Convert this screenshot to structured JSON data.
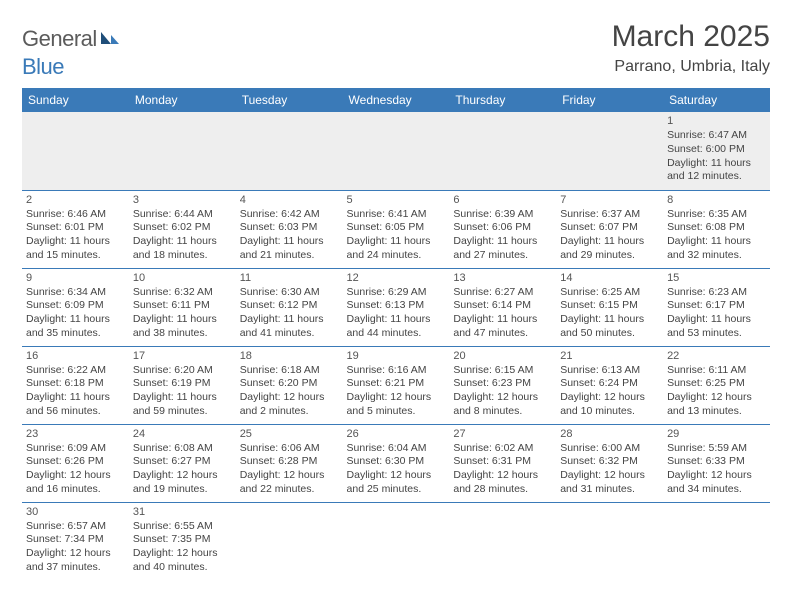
{
  "logo": {
    "word1": "General",
    "word2": "Blue"
  },
  "title": "March 2025",
  "location": "Parrano, Umbria, Italy",
  "colors": {
    "header_bg": "#3a7ab8",
    "header_fg": "#ffffff",
    "border": "#3a7ab8",
    "text": "#444444",
    "empty_bg": "#eeeeee"
  },
  "weekdays": [
    "Sunday",
    "Monday",
    "Tuesday",
    "Wednesday",
    "Thursday",
    "Friday",
    "Saturday"
  ],
  "weeks": [
    [
      null,
      null,
      null,
      null,
      null,
      null,
      {
        "n": "1",
        "sr": "Sunrise: 6:47 AM",
        "ss": "Sunset: 6:00 PM",
        "d1": "Daylight: 11 hours",
        "d2": "and 12 minutes."
      }
    ],
    [
      {
        "n": "2",
        "sr": "Sunrise: 6:46 AM",
        "ss": "Sunset: 6:01 PM",
        "d1": "Daylight: 11 hours",
        "d2": "and 15 minutes."
      },
      {
        "n": "3",
        "sr": "Sunrise: 6:44 AM",
        "ss": "Sunset: 6:02 PM",
        "d1": "Daylight: 11 hours",
        "d2": "and 18 minutes."
      },
      {
        "n": "4",
        "sr": "Sunrise: 6:42 AM",
        "ss": "Sunset: 6:03 PM",
        "d1": "Daylight: 11 hours",
        "d2": "and 21 minutes."
      },
      {
        "n": "5",
        "sr": "Sunrise: 6:41 AM",
        "ss": "Sunset: 6:05 PM",
        "d1": "Daylight: 11 hours",
        "d2": "and 24 minutes."
      },
      {
        "n": "6",
        "sr": "Sunrise: 6:39 AM",
        "ss": "Sunset: 6:06 PM",
        "d1": "Daylight: 11 hours",
        "d2": "and 27 minutes."
      },
      {
        "n": "7",
        "sr": "Sunrise: 6:37 AM",
        "ss": "Sunset: 6:07 PM",
        "d1": "Daylight: 11 hours",
        "d2": "and 29 minutes."
      },
      {
        "n": "8",
        "sr": "Sunrise: 6:35 AM",
        "ss": "Sunset: 6:08 PM",
        "d1": "Daylight: 11 hours",
        "d2": "and 32 minutes."
      }
    ],
    [
      {
        "n": "9",
        "sr": "Sunrise: 6:34 AM",
        "ss": "Sunset: 6:09 PM",
        "d1": "Daylight: 11 hours",
        "d2": "and 35 minutes."
      },
      {
        "n": "10",
        "sr": "Sunrise: 6:32 AM",
        "ss": "Sunset: 6:11 PM",
        "d1": "Daylight: 11 hours",
        "d2": "and 38 minutes."
      },
      {
        "n": "11",
        "sr": "Sunrise: 6:30 AM",
        "ss": "Sunset: 6:12 PM",
        "d1": "Daylight: 11 hours",
        "d2": "and 41 minutes."
      },
      {
        "n": "12",
        "sr": "Sunrise: 6:29 AM",
        "ss": "Sunset: 6:13 PM",
        "d1": "Daylight: 11 hours",
        "d2": "and 44 minutes."
      },
      {
        "n": "13",
        "sr": "Sunrise: 6:27 AM",
        "ss": "Sunset: 6:14 PM",
        "d1": "Daylight: 11 hours",
        "d2": "and 47 minutes."
      },
      {
        "n": "14",
        "sr": "Sunrise: 6:25 AM",
        "ss": "Sunset: 6:15 PM",
        "d1": "Daylight: 11 hours",
        "d2": "and 50 minutes."
      },
      {
        "n": "15",
        "sr": "Sunrise: 6:23 AM",
        "ss": "Sunset: 6:17 PM",
        "d1": "Daylight: 11 hours",
        "d2": "and 53 minutes."
      }
    ],
    [
      {
        "n": "16",
        "sr": "Sunrise: 6:22 AM",
        "ss": "Sunset: 6:18 PM",
        "d1": "Daylight: 11 hours",
        "d2": "and 56 minutes."
      },
      {
        "n": "17",
        "sr": "Sunrise: 6:20 AM",
        "ss": "Sunset: 6:19 PM",
        "d1": "Daylight: 11 hours",
        "d2": "and 59 minutes."
      },
      {
        "n": "18",
        "sr": "Sunrise: 6:18 AM",
        "ss": "Sunset: 6:20 PM",
        "d1": "Daylight: 12 hours",
        "d2": "and 2 minutes."
      },
      {
        "n": "19",
        "sr": "Sunrise: 6:16 AM",
        "ss": "Sunset: 6:21 PM",
        "d1": "Daylight: 12 hours",
        "d2": "and 5 minutes."
      },
      {
        "n": "20",
        "sr": "Sunrise: 6:15 AM",
        "ss": "Sunset: 6:23 PM",
        "d1": "Daylight: 12 hours",
        "d2": "and 8 minutes."
      },
      {
        "n": "21",
        "sr": "Sunrise: 6:13 AM",
        "ss": "Sunset: 6:24 PM",
        "d1": "Daylight: 12 hours",
        "d2": "and 10 minutes."
      },
      {
        "n": "22",
        "sr": "Sunrise: 6:11 AM",
        "ss": "Sunset: 6:25 PM",
        "d1": "Daylight: 12 hours",
        "d2": "and 13 minutes."
      }
    ],
    [
      {
        "n": "23",
        "sr": "Sunrise: 6:09 AM",
        "ss": "Sunset: 6:26 PM",
        "d1": "Daylight: 12 hours",
        "d2": "and 16 minutes."
      },
      {
        "n": "24",
        "sr": "Sunrise: 6:08 AM",
        "ss": "Sunset: 6:27 PM",
        "d1": "Daylight: 12 hours",
        "d2": "and 19 minutes."
      },
      {
        "n": "25",
        "sr": "Sunrise: 6:06 AM",
        "ss": "Sunset: 6:28 PM",
        "d1": "Daylight: 12 hours",
        "d2": "and 22 minutes."
      },
      {
        "n": "26",
        "sr": "Sunrise: 6:04 AM",
        "ss": "Sunset: 6:30 PM",
        "d1": "Daylight: 12 hours",
        "d2": "and 25 minutes."
      },
      {
        "n": "27",
        "sr": "Sunrise: 6:02 AM",
        "ss": "Sunset: 6:31 PM",
        "d1": "Daylight: 12 hours",
        "d2": "and 28 minutes."
      },
      {
        "n": "28",
        "sr": "Sunrise: 6:00 AM",
        "ss": "Sunset: 6:32 PM",
        "d1": "Daylight: 12 hours",
        "d2": "and 31 minutes."
      },
      {
        "n": "29",
        "sr": "Sunrise: 5:59 AM",
        "ss": "Sunset: 6:33 PM",
        "d1": "Daylight: 12 hours",
        "d2": "and 34 minutes."
      }
    ],
    [
      {
        "n": "30",
        "sr": "Sunrise: 6:57 AM",
        "ss": "Sunset: 7:34 PM",
        "d1": "Daylight: 12 hours",
        "d2": "and 37 minutes."
      },
      {
        "n": "31",
        "sr": "Sunrise: 6:55 AM",
        "ss": "Sunset: 7:35 PM",
        "d1": "Daylight: 12 hours",
        "d2": "and 40 minutes."
      },
      null,
      null,
      null,
      null,
      null
    ]
  ]
}
